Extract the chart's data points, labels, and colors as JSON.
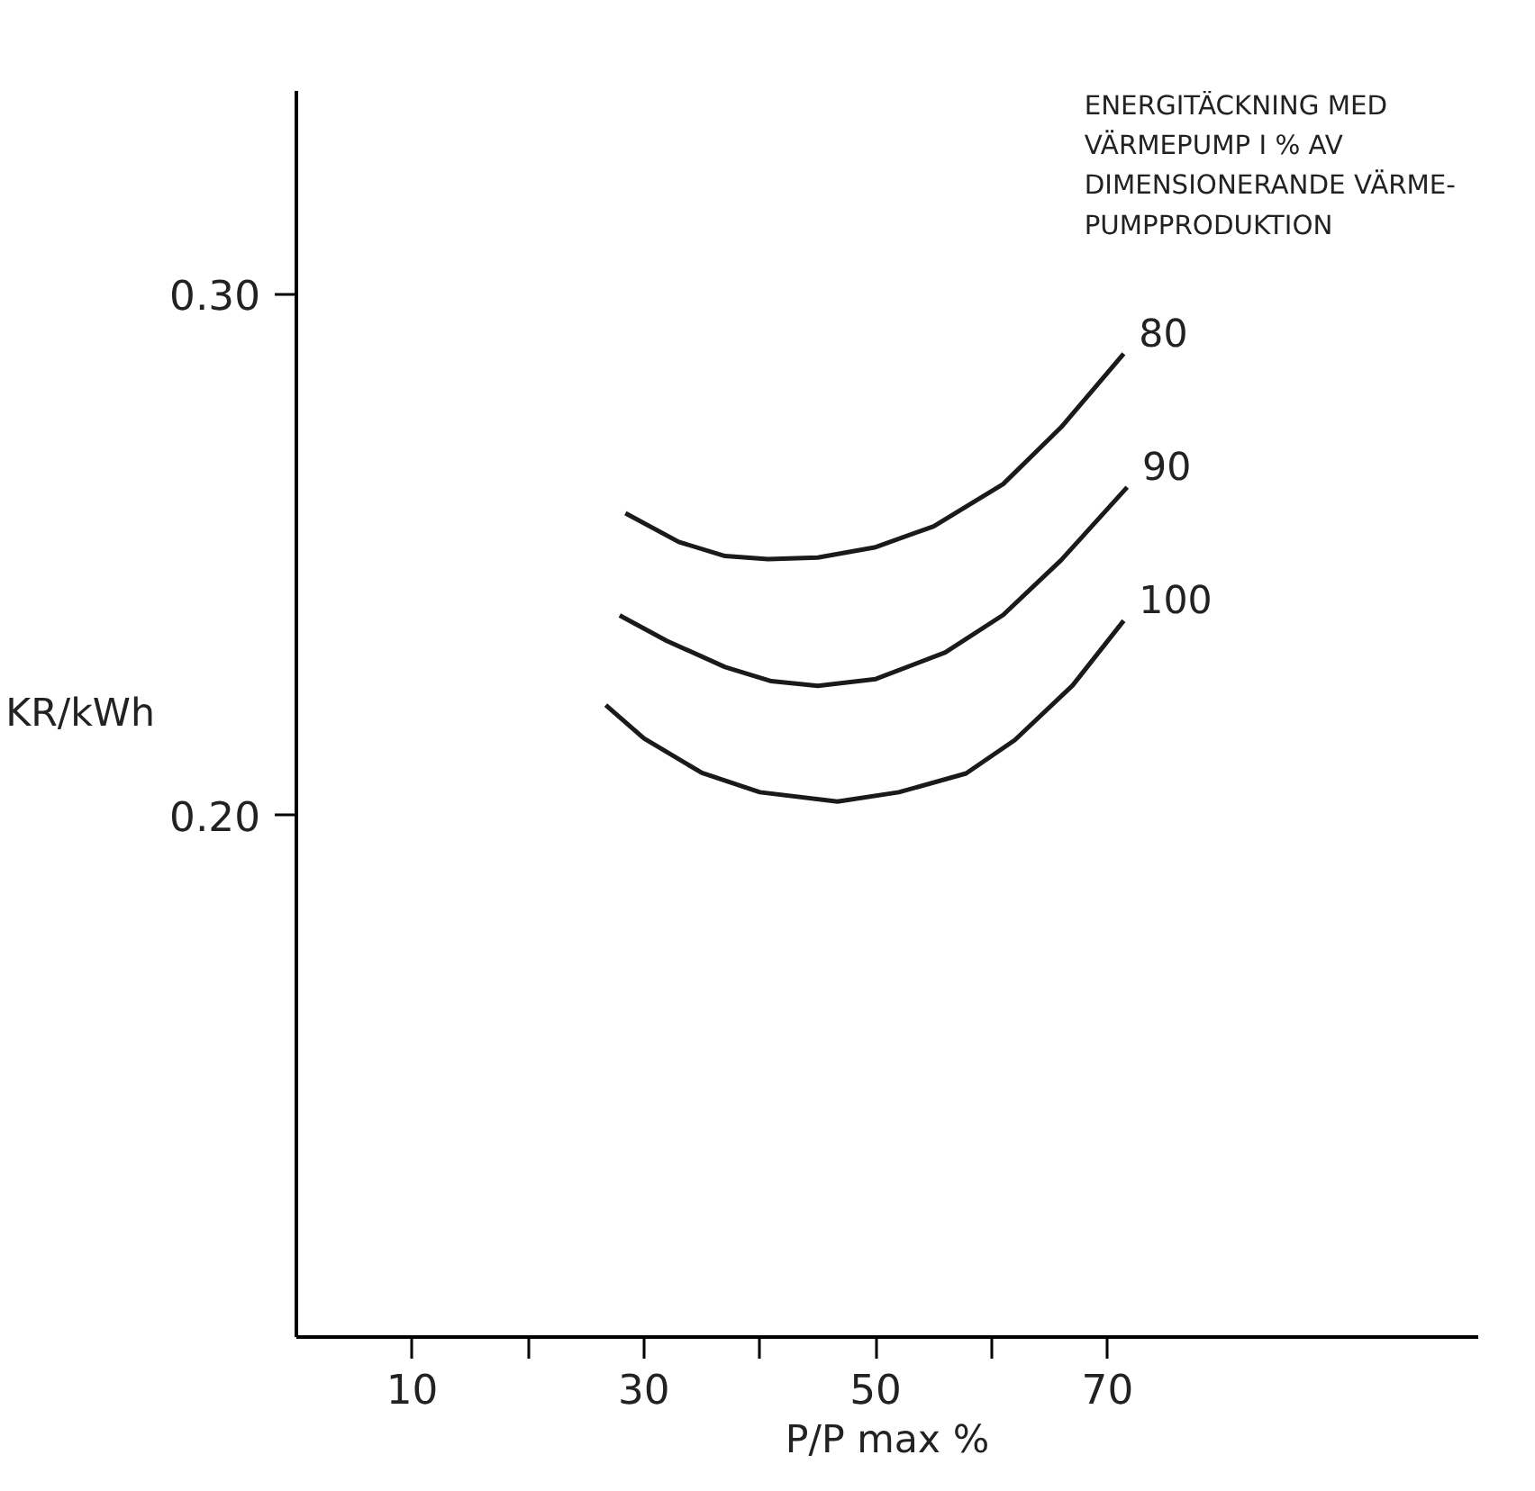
{
  "chart_data": {
    "type": "line",
    "xlabel": "P/P max %",
    "ylabel": "KR/kWh",
    "legend_title": "ENERGITÄCKNING MED\nVÄRMEPUMP I % AV\nDIMENSIONERANDE VÄRME-\nPUMPPRODUKTION",
    "xlim": [
      0,
      102
    ],
    "ylim": [
      0.1,
      0.339
    ],
    "xticks": [
      10,
      {
        "value": 20,
        "label": null
      },
      30,
      {
        "value": 40,
        "label": null
      },
      50,
      {
        "value": 60,
        "label": null
      },
      70
    ],
    "yticks": [
      {
        "value": 0.2,
        "label": "0.20"
      },
      {
        "value": 0.3,
        "label": "0.30"
      }
    ],
    "grid": false,
    "marker": "none",
    "line_style": "solid",
    "series": [
      {
        "name": "80",
        "color": "#1a1a1a",
        "x": [
          28.4,
          33,
          37,
          40.7,
          45,
          50,
          55,
          61,
          66,
          71.4
        ],
        "values": [
          0.258,
          0.2525,
          0.2498,
          0.2492,
          0.2495,
          0.2515,
          0.2555,
          0.2636,
          0.2745,
          0.2886
        ]
      },
      {
        "name": "90",
        "color": "#1a1a1a",
        "x": [
          27.9,
          32,
          37,
          41,
          45,
          50,
          56,
          61,
          66,
          71.7
        ],
        "values": [
          0.2384,
          0.2335,
          0.2285,
          0.2258,
          0.2249,
          0.2262,
          0.2313,
          0.2385,
          0.249,
          0.263
        ]
      },
      {
        "name": "100",
        "color": "#1a1a1a",
        "x": [
          26.7,
          30,
          35,
          40,
          46.7,
          52,
          57.8,
          62,
          67,
          71.4
        ],
        "values": [
          0.2212,
          0.2148,
          0.2082,
          0.2045,
          0.2027,
          0.2045,
          0.2081,
          0.2145,
          0.225,
          0.2374
        ]
      }
    ]
  }
}
